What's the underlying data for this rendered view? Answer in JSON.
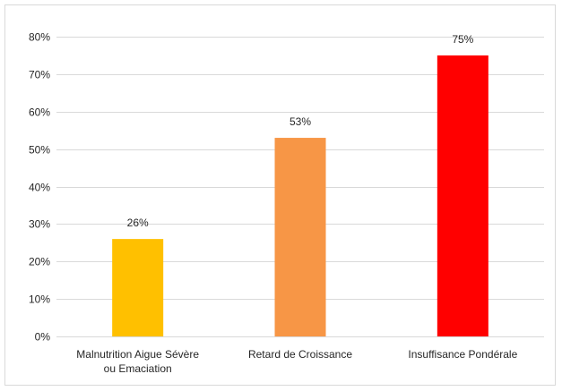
{
  "chart_data": {
    "type": "bar",
    "categories": [
      [
        "Malnutrition Aigue Sévère",
        "ou Emaciation"
      ],
      [
        "Retard de Croissance"
      ],
      [
        "Insuffisance Pondérale"
      ]
    ],
    "values": [
      26,
      53,
      75
    ],
    "data_labels": [
      "26%",
      "53%",
      "75%"
    ],
    "bar_colors": [
      "#FFC000",
      "#F79646",
      "#FF0000"
    ],
    "ylim": [
      0,
      80
    ],
    "yticks": [
      0,
      10,
      20,
      30,
      40,
      50,
      60,
      70,
      80
    ],
    "ytick_labels": [
      "0%",
      "10%",
      "20%",
      "30%",
      "40%",
      "50%",
      "60%",
      "70%",
      "80%"
    ],
    "grid": true,
    "title": "",
    "xlabel": "",
    "ylabel": ""
  }
}
